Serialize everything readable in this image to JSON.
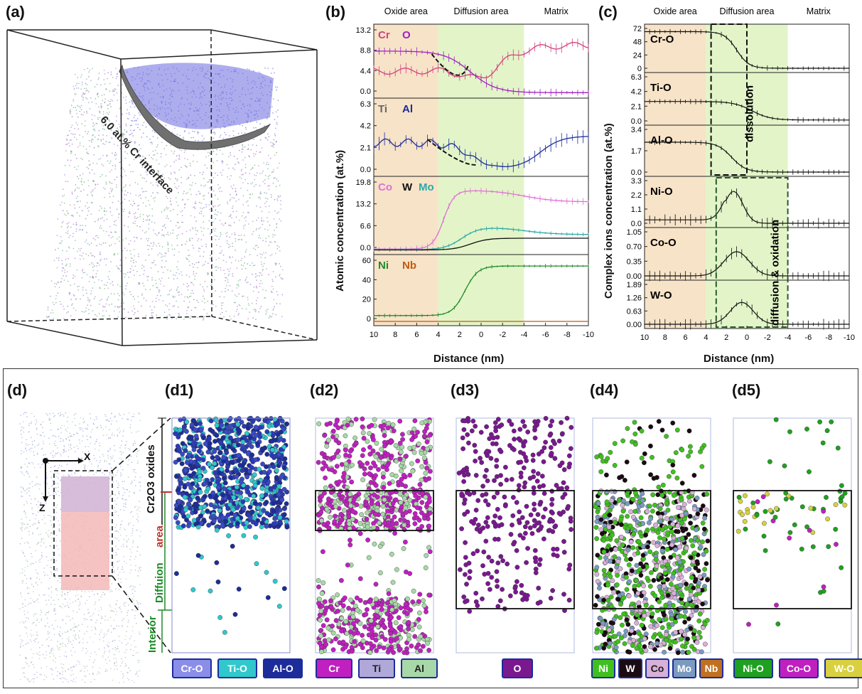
{
  "labels": {
    "a": "(a)",
    "b": "(b)",
    "c": "(c)",
    "d": "(d)",
    "d1": "(d1)",
    "d2": "(d2)",
    "d3": "(d3)",
    "d4": "(d4)",
    "d5": "(d5)"
  },
  "panel_a": {
    "annotation": "6.0 at.% Cr interface"
  },
  "panel_b": {
    "regions": [
      "Oxide area",
      "Diffusion area",
      "Matrix"
    ],
    "y_title": "Atomic concentration (at.%)",
    "x_title": "Distance (nm)",
    "x_ticks": [
      "10",
      "8",
      "6",
      "4",
      "2",
      "0",
      "-2",
      "-4",
      "-6",
      "-8",
      "-10"
    ],
    "subplots": [
      {
        "labels": [
          {
            "t": "Cr",
            "c": "#d0417e"
          },
          {
            "t": "O",
            "c": "#a020c0"
          }
        ],
        "ticks": [
          "13.2",
          "8.8",
          "4.4",
          "0.0"
        ]
      },
      {
        "labels": [
          {
            "t": "Ti",
            "c": "#666666"
          },
          {
            "t": "Al",
            "c": "#1c2c9a"
          }
        ],
        "ticks": [
          "6.3",
          "4.2",
          "2.1",
          "0.0"
        ]
      },
      {
        "labels": [
          {
            "t": "Co",
            "c": "#e070d8"
          },
          {
            "t": "W",
            "c": "#111111"
          },
          {
            "t": "Mo",
            "c": "#2aa8a8"
          }
        ],
        "ticks": [
          "19.8",
          "13.2",
          "6.6",
          "0.0"
        ]
      },
      {
        "labels": [
          {
            "t": "Ni",
            "c": "#1f8a2a"
          },
          {
            "t": "Nb",
            "c": "#c05a10"
          }
        ],
        "ticks": [
          "60",
          "40",
          "20",
          "0"
        ]
      }
    ]
  },
  "panel_c": {
    "regions": [
      "Oxide area",
      "Diffusion area",
      "Matrix"
    ],
    "y_title": "Complex ions concentration (at.%)",
    "x_title": "Distance (nm)",
    "x_ticks": [
      "10",
      "8",
      "6",
      "4",
      "2",
      "0",
      "-2",
      "-4",
      "-6",
      "-8",
      "-10"
    ],
    "subplots": [
      {
        "label": "Cr-O",
        "ticks": [
          "72",
          "48",
          "24",
          "0"
        ]
      },
      {
        "label": "Ti-O",
        "ticks": [
          "6.3",
          "4.2",
          "2.1",
          "0.0"
        ]
      },
      {
        "label": "Al-O",
        "ticks": [
          "3.4",
          "1.7",
          "0.0"
        ]
      },
      {
        "label": "Ni-O",
        "ticks": [
          "3.3",
          "2.2",
          "1.1",
          "0.0"
        ]
      },
      {
        "label": "Co-O",
        "ticks": [
          "1.05",
          "0.70",
          "0.35",
          "0.00"
        ]
      },
      {
        "label": "W-O",
        "ticks": [
          "1.89",
          "1.26",
          "0.63",
          "0.00"
        ]
      }
    ],
    "annot_dissolution": "dissolution",
    "annot_diffusion": "diffusion & oxidation"
  },
  "panel_d": {
    "axis_x": "X",
    "axis_z": "Z",
    "zone_oxide": "Cr2O3 oxides",
    "zone_diff_1": "Diffuion",
    "zone_diff_2": "area",
    "zone_interior": "Interior"
  },
  "legends": {
    "d1": [
      {
        "t": "Cr-O",
        "bg": "#8a8ee8",
        "fg": "#ffffff"
      },
      {
        "t": "Ti-O",
        "bg": "#30c8cc",
        "fg": "#ffffff"
      },
      {
        "t": "Al-O",
        "bg": "#1c2c9a",
        "fg": "#ffffff"
      }
    ],
    "d2": [
      {
        "t": "Cr",
        "bg": "#c020c0",
        "fg": "#ffffff"
      },
      {
        "t": "Ti",
        "bg": "#b0a8d8",
        "fg": "#222222"
      },
      {
        "t": "Al",
        "bg": "#a8d8a8",
        "fg": "#222222"
      }
    ],
    "d3": [
      {
        "t": "O",
        "bg": "#7a1890",
        "fg": "#ffffff"
      }
    ],
    "d4": [
      {
        "t": "Ni",
        "bg": "#40c020",
        "fg": "#ffffff"
      },
      {
        "t": "W",
        "bg": "#1a0a12",
        "fg": "#ffffff"
      },
      {
        "t": "Co",
        "bg": "#d8b0d8",
        "fg": "#222222"
      },
      {
        "t": "Mo",
        "bg": "#7a9ac0",
        "fg": "#ffffff"
      },
      {
        "t": "Nb",
        "bg": "#c07020",
        "fg": "#ffffff"
      }
    ],
    "d5": [
      {
        "t": "Ni-O",
        "bg": "#20a020",
        "fg": "#ffffff"
      },
      {
        "t": "Co-O",
        "bg": "#c020c0",
        "fg": "#ffffff"
      },
      {
        "t": "W-O",
        "bg": "#d8d040",
        "fg": "#ffffff"
      }
    ]
  }
}
